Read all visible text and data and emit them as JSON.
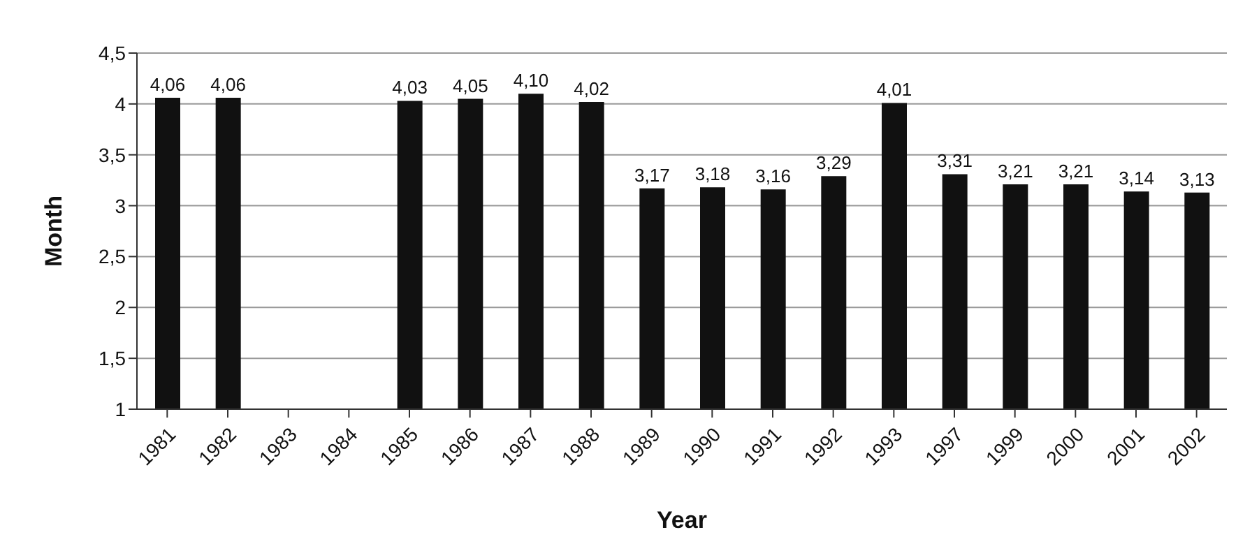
{
  "chart_data": {
    "type": "bar",
    "xlabel": "Year",
    "ylabel": "Month",
    "categories": [
      "1981",
      "1982",
      "1983",
      "1984",
      "1985",
      "1986",
      "1987",
      "1988",
      "1989",
      "1990",
      "1991",
      "1992",
      "1993",
      "1997",
      "1999",
      "2000",
      "2001",
      "2002"
    ],
    "values": [
      4.06,
      4.06,
      null,
      null,
      4.03,
      4.05,
      4.1,
      4.02,
      3.17,
      3.18,
      3.16,
      3.29,
      4.01,
      3.31,
      3.21,
      3.21,
      3.14,
      3.13
    ],
    "value_labels": [
      "4,06",
      "4,06",
      null,
      null,
      "4,03",
      "4,05",
      "4,10",
      "4,02",
      "3,17",
      "3,18",
      "3,16",
      "3,29",
      "4,01",
      "3,31",
      "3,21",
      "3,21",
      "3,14",
      "3,13"
    ],
    "color": "#111111",
    "ylim": [
      1,
      4.5
    ],
    "yticks": [
      1,
      {
        "value": 1.5,
        "label": "1,5"
      },
      2,
      {
        "value": 2.5,
        "label": "2,5"
      },
      3,
      {
        "value": 3.5,
        "label": "3,5"
      },
      4,
      {
        "value": 4.5,
        "label": "4,5"
      }
    ],
    "grid": "y"
  }
}
